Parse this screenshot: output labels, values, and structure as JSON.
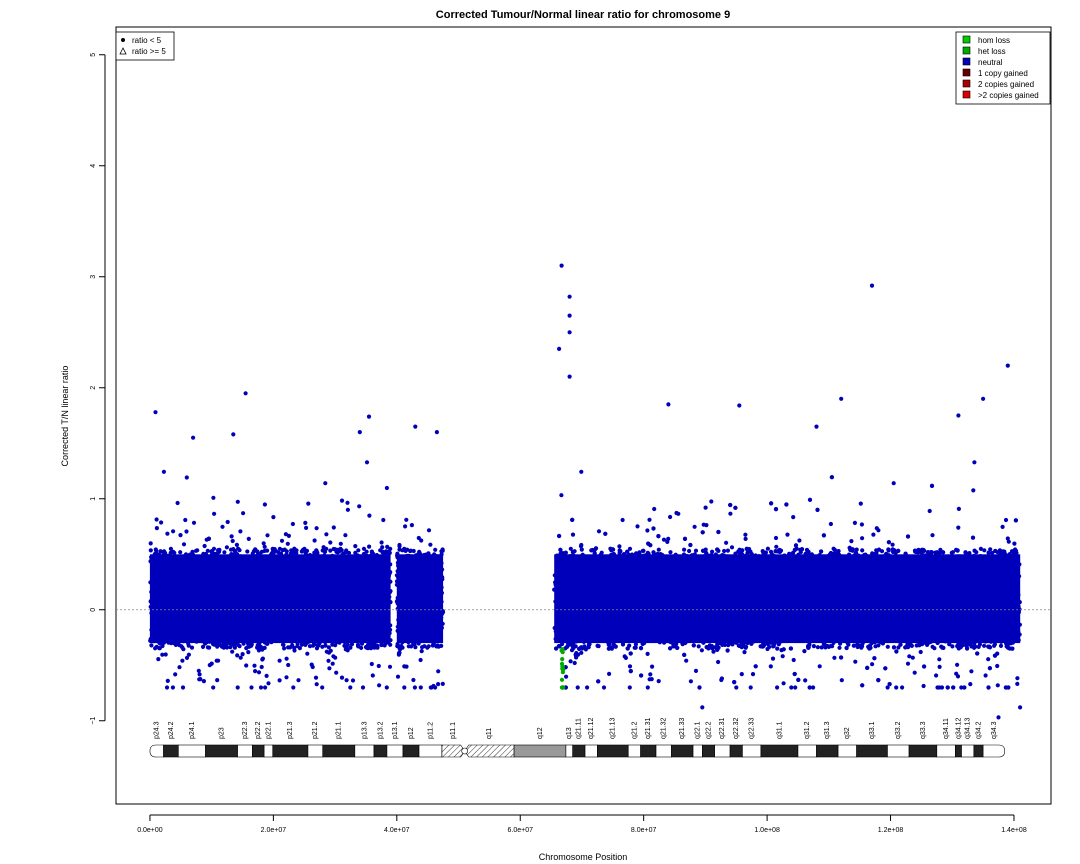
{
  "chart_data": {
    "type": "scatter",
    "title": "Corrected Tumour/Normal linear ratio for chromosome  9",
    "xlabel": "Chromosome Position",
    "ylabel": "Corrected T/N linear ratio",
    "xlim": [
      -5500000,
      146000000
    ],
    "ylim": [
      -1.75,
      5.25
    ],
    "x_ticks": [
      0,
      20000000,
      40000000,
      60000000,
      80000000,
      100000000,
      120000000,
      140000000
    ],
    "x_tick_labels": [
      "0.0e+00",
      "2.0e+07",
      "4.0e+07",
      "6.0e+07",
      "8.0e+07",
      "1.0e+08",
      "1.2e+08",
      "1.4e+08"
    ],
    "y_ticks": [
      -1,
      0,
      1,
      2,
      3,
      4,
      5
    ],
    "y_tick_labels": [
      "−1",
      "0",
      "1",
      "2",
      "3",
      "4",
      "5"
    ],
    "reference_line_y": 0,
    "point_legend": [
      "ratio < 5",
      "ratio >= 5"
    ],
    "legend_position": "top-left and top-right",
    "state_legend": [
      {
        "label": "hom loss",
        "color": "#00cc00"
      },
      {
        "label": "het loss",
        "color": "#00aa00"
      },
      {
        "label": "neutral",
        "color": "#0000bb"
      },
      {
        "label": "1 copy gained",
        "color": "#660000"
      },
      {
        "label": "2 copies gained",
        "color": "#aa0000"
      },
      {
        "label": ">2 copies gained",
        "color": "#dd0000"
      }
    ],
    "colors": {
      "neutral": "#0000bb",
      "het_loss": "#00aa00",
      "reference": "#888888"
    },
    "point_density": {
      "core_band": [
        -0.35,
        0.55
      ],
      "spread": [
        -0.65,
        1.3
      ]
    },
    "segments": [
      {
        "start": 0,
        "end": 39000000,
        "state": "neutral"
      },
      {
        "start": 40000000,
        "end": 47500000,
        "state": "neutral"
      },
      {
        "start": 65500000,
        "end": 141000000,
        "state": "neutral"
      },
      {
        "start": 66700000,
        "end": 67000000,
        "state": "het loss"
      }
    ],
    "outlier_points": [
      {
        "x": 900000,
        "y": 1.78
      },
      {
        "x": 7000000,
        "y": 1.55
      },
      {
        "x": 13500000,
        "y": 1.58
      },
      {
        "x": 15500000,
        "y": 1.95
      },
      {
        "x": 35500000,
        "y": 1.74
      },
      {
        "x": 34000000,
        "y": 1.6
      },
      {
        "x": 43000000,
        "y": 1.65
      },
      {
        "x": 46500000,
        "y": 1.6
      },
      {
        "x": 66300000,
        "y": 2.35
      },
      {
        "x": 66700000,
        "y": 3.1
      },
      {
        "x": 68000000,
        "y": 2.82
      },
      {
        "x": 68000000,
        "y": 2.65
      },
      {
        "x": 68000000,
        "y": 2.5
      },
      {
        "x": 68000000,
        "y": 2.1
      },
      {
        "x": 84000000,
        "y": 1.85
      },
      {
        "x": 95500000,
        "y": 1.84
      },
      {
        "x": 112000000,
        "y": 1.9
      },
      {
        "x": 117000000,
        "y": 2.92
      },
      {
        "x": 139000000,
        "y": 2.2
      },
      {
        "x": 135000000,
        "y": 1.9
      },
      {
        "x": 131000000,
        "y": 1.75
      },
      {
        "x": 108000000,
        "y": 1.65
      },
      {
        "x": 89500000,
        "y": -0.88
      },
      {
        "x": 137500000,
        "y": -0.97
      },
      {
        "x": 141000000,
        "y": -0.88
      }
    ],
    "ideogram": {
      "centromere_position": 51000000,
      "bands": [
        {
          "name": "p24.3",
          "start": 0,
          "end": 2200000,
          "stain": "gneg"
        },
        {
          "name": "p24.2",
          "start": 2200000,
          "end": 4600000,
          "stain": "gpos"
        },
        {
          "name": "p24.1",
          "start": 4600000,
          "end": 9000000,
          "stain": "gneg"
        },
        {
          "name": "p23",
          "start": 9000000,
          "end": 14200000,
          "stain": "gpos"
        },
        {
          "name": "p22.3",
          "start": 14200000,
          "end": 16600000,
          "stain": "gneg"
        },
        {
          "name": "p22.2",
          "start": 16600000,
          "end": 18500000,
          "stain": "gpos"
        },
        {
          "name": "p22.1",
          "start": 18500000,
          "end": 19900000,
          "stain": "gneg"
        },
        {
          "name": "p21.3",
          "start": 19900000,
          "end": 25600000,
          "stain": "gpos"
        },
        {
          "name": "p21.2",
          "start": 25600000,
          "end": 28000000,
          "stain": "gneg"
        },
        {
          "name": "p21.1",
          "start": 28000000,
          "end": 33200000,
          "stain": "gpos"
        },
        {
          "name": "p13.3",
          "start": 33200000,
          "end": 36300000,
          "stain": "gneg"
        },
        {
          "name": "p13.2",
          "start": 36300000,
          "end": 38400000,
          "stain": "gpos"
        },
        {
          "name": "p13.1",
          "start": 38400000,
          "end": 41000000,
          "stain": "gneg"
        },
        {
          "name": "p12",
          "start": 41000000,
          "end": 43600000,
          "stain": "gpos"
        },
        {
          "name": "p11.2",
          "start": 43600000,
          "end": 47300000,
          "stain": "gneg"
        },
        {
          "name": "p11.1",
          "start": 47300000,
          "end": 51000000,
          "stain": "acen"
        },
        {
          "name": "q11",
          "start": 51000000,
          "end": 59000000,
          "stain": "acen"
        },
        {
          "name": "q12",
          "start": 59000000,
          "end": 67400000,
          "stain": "gvar"
        },
        {
          "name": "q13",
          "start": 67400000,
          "end": 68500000,
          "stain": "gneg"
        },
        {
          "name": "q21.11",
          "start": 68500000,
          "end": 70500000,
          "stain": "gpos"
        },
        {
          "name": "q21.12",
          "start": 70500000,
          "end": 72500000,
          "stain": "gneg"
        },
        {
          "name": "q21.13",
          "start": 72500000,
          "end": 77500000,
          "stain": "gpos"
        },
        {
          "name": "q21.2",
          "start": 77500000,
          "end": 79500000,
          "stain": "gneg"
        },
        {
          "name": "q21.31",
          "start": 79500000,
          "end": 82000000,
          "stain": "gpos"
        },
        {
          "name": "q21.32",
          "start": 82000000,
          "end": 84500000,
          "stain": "gneg"
        },
        {
          "name": "q21.33",
          "start": 84500000,
          "end": 88000000,
          "stain": "gpos"
        },
        {
          "name": "q22.1",
          "start": 88000000,
          "end": 89500000,
          "stain": "gneg"
        },
        {
          "name": "q22.2",
          "start": 89500000,
          "end": 91500000,
          "stain": "gpos"
        },
        {
          "name": "q22.31",
          "start": 91500000,
          "end": 94000000,
          "stain": "gneg"
        },
        {
          "name": "q22.32",
          "start": 94000000,
          "end": 96000000,
          "stain": "gpos"
        },
        {
          "name": "q22.33",
          "start": 96000000,
          "end": 99000000,
          "stain": "gneg"
        },
        {
          "name": "q31.1",
          "start": 99000000,
          "end": 105000000,
          "stain": "gpos"
        },
        {
          "name": "q31.2",
          "start": 105000000,
          "end": 108000000,
          "stain": "gneg"
        },
        {
          "name": "q31.3",
          "start": 108000000,
          "end": 111500000,
          "stain": "gpos"
        },
        {
          "name": "q32",
          "start": 111500000,
          "end": 114500000,
          "stain": "gneg"
        },
        {
          "name": "q33.1",
          "start": 114500000,
          "end": 119500000,
          "stain": "gpos"
        },
        {
          "name": "q33.2",
          "start": 119500000,
          "end": 123000000,
          "stain": "gneg"
        },
        {
          "name": "q33.3",
          "start": 123000000,
          "end": 127500000,
          "stain": "gpos"
        },
        {
          "name": "q34.11",
          "start": 127500000,
          "end": 130500000,
          "stain": "gneg"
        },
        {
          "name": "q34.12",
          "start": 130500000,
          "end": 131500000,
          "stain": "gpos"
        },
        {
          "name": "q34.13",
          "start": 131500000,
          "end": 133500000,
          "stain": "gneg"
        },
        {
          "name": "q34.2",
          "start": 133500000,
          "end": 135000000,
          "stain": "gpos"
        },
        {
          "name": "q34.3",
          "start": 135000000,
          "end": 138500000,
          "stain": "gneg"
        }
      ]
    }
  }
}
